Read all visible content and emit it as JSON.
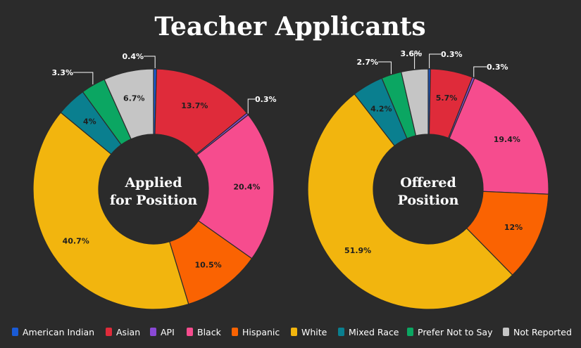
{
  "title": "Teacher Applicants",
  "chart_data": [
    {
      "type": "pie",
      "center_label": [
        "Applied",
        "for Position"
      ],
      "categories": [
        "American Indian",
        "Asian",
        "API",
        "Black",
        "Hispanic",
        "White",
        "Mixed Race",
        "Prefer Not to Say",
        "Not Reported"
      ],
      "values": [
        0.4,
        13.7,
        0.3,
        20.4,
        10.5,
        40.7,
        4,
        3.3,
        6.7
      ],
      "labels": [
        "0.4%",
        "13.7%",
        "0.3%",
        "20.4%",
        "10.5%",
        "40.7%",
        "4%",
        "3.3%",
        "6.7%"
      ]
    },
    {
      "type": "pie",
      "center_label": [
        "Offered",
        "Position"
      ],
      "categories": [
        "American Indian",
        "Asian",
        "API",
        "Black",
        "Hispanic",
        "White",
        "Mixed Race",
        "Prefer Not to Say",
        "Not Reported"
      ],
      "values": [
        0.3,
        5.7,
        0.3,
        19.4,
        12,
        51.9,
        4.2,
        2.7,
        3.6
      ],
      "labels": [
        "0.3%",
        "5.7%",
        "0.3%",
        "19.4%",
        "12%",
        "51.9%",
        "4.2%",
        "2.7%",
        "3.6%"
      ]
    }
  ],
  "legend": [
    {
      "label": "American Indian",
      "color": "#1a5bd6"
    },
    {
      "label": "Asian",
      "color": "#df2b3a"
    },
    {
      "label": "API",
      "color": "#8a49d6"
    },
    {
      "label": "Black",
      "color": "#f64c8e"
    },
    {
      "label": "Hispanic",
      "color": "#fa6302"
    },
    {
      "label": "White",
      "color": "#f2b50e"
    },
    {
      "label": "Mixed Race",
      "color": "#0a7f8f"
    },
    {
      "label": "Prefer Not to Say",
      "color": "#0ba662"
    },
    {
      "label": "Not Reported",
      "color": "#c5c5c5"
    }
  ]
}
